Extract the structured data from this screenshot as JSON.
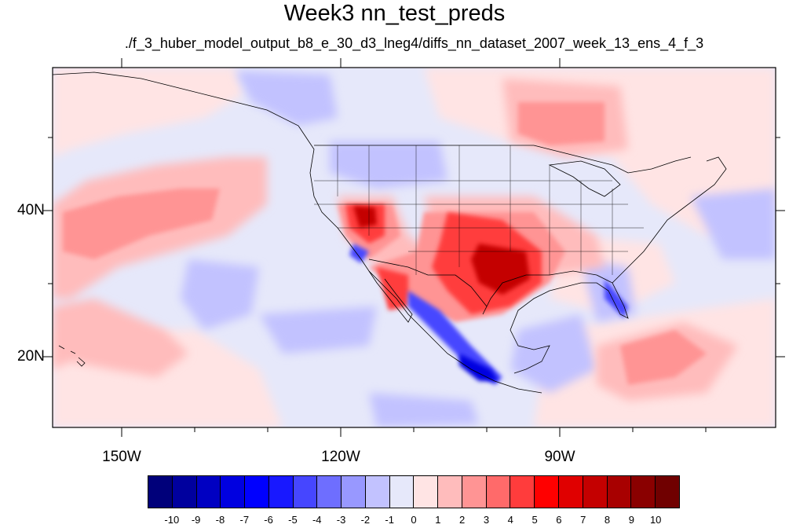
{
  "title": "Week3 nn_test_preds",
  "subtitle": "./f_3_huber_model_output_b8_e_30_d3_lneg4/diffs_nn_dataset_2007_week_13_ens_4_f_3",
  "lon_ticks": [
    {
      "label": "150W",
      "lon": -150
    },
    {
      "label": "120W",
      "lon": -120
    },
    {
      "label": "90W",
      "lon": -90
    }
  ],
  "lat_ticks": [
    {
      "label": "40N",
      "lat": 40
    },
    {
      "label": "20N",
      "lat": 20
    }
  ],
  "colorbar": {
    "labels": [
      "-10",
      "-9",
      "-8",
      "-7",
      "-6",
      "-5",
      "-4",
      "-3",
      "-2",
      "-1",
      "0",
      "1",
      "2",
      "3",
      "4",
      "5",
      "6",
      "7",
      "8",
      "9",
      "10"
    ],
    "colors": [
      "#00007a",
      "#00009e",
      "#0000c2",
      "#0000e0",
      "#0000ff",
      "#1818ff",
      "#4646ff",
      "#6e6eff",
      "#9898ff",
      "#c2c2ff",
      "#e6e8fa",
      "#ffe4e4",
      "#ffbcbc",
      "#ff9494",
      "#ff6a6a",
      "#ff3c3c",
      "#ff0000",
      "#e00000",
      "#c40000",
      "#a80000",
      "#8a0000",
      "#700000"
    ]
  }
}
